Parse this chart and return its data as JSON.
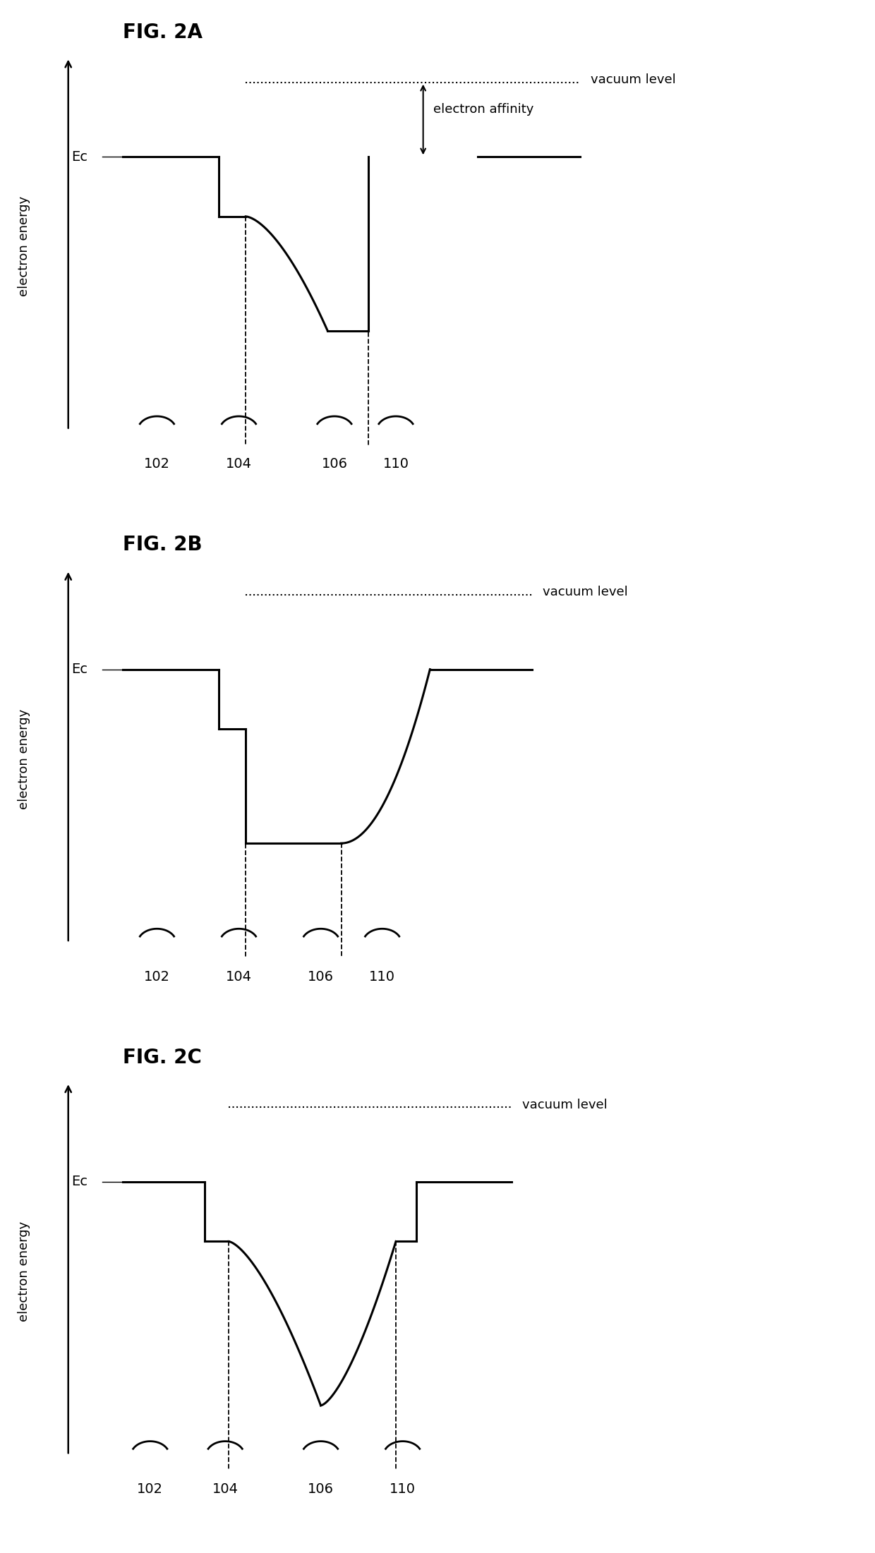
{
  "fig_title_A": "FIG. 2A",
  "fig_title_B": "FIG. 2B",
  "fig_title_C": "FIG. 2C",
  "vacuum_label": "vacuum level",
  "electron_affinity_label": "electron affinity",
  "ec_label": "Ec",
  "ylabel": "electron energy",
  "labels_102": "102",
  "labels_104": "104",
  "labels_106": "106",
  "labels_110": "110",
  "bg_color": "#ffffff",
  "line_color": "#000000",
  "title_fontsize": 20,
  "label_fontsize": 14,
  "ylabel_fontsize": 13
}
